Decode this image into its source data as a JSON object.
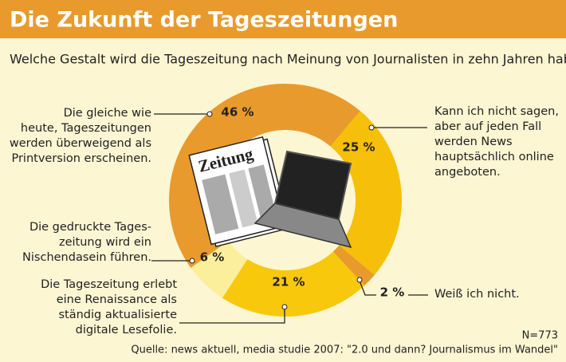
{
  "chart_data": {
    "type": "donut",
    "title": "Die Zukunft der Tageszeitungen",
    "subtitle": "Welche Gestalt wird die Tageszeitung nach Meinung von Journalisten in zehn Jahren haben?",
    "categories": [
      "Die gleiche wie\nheute, Tageszeitungen\nwerden überweigend als\nPrintversion erscheinen.",
      "Kann ich nicht sagen,\naber auf jeden Fall\nwerden News\nhauptsächlich online\nangeboten.",
      "Weiß ich nicht.",
      "Die Tageszeitung erlebt\neine Renaissance als\nständig aktualisierte\ndigitale Lesefolie.",
      "Die gedruckte Tages-\nzeitung wird ein\nNischendasein führen."
    ],
    "values": [
      46,
      25,
      2,
      21,
      6
    ],
    "value_labels": [
      "46 %",
      "25 %",
      "2 %",
      "21 %",
      "6 %"
    ],
    "colors": [
      "#e99a2c",
      "#f6bf0a",
      "#e99a2c",
      "#f8c80c",
      "#fbef9c"
    ],
    "illustration_label": "Zeitung",
    "sample_note": "N=773",
    "source": "Quelle: news aktuell, media studie 2007: \"2.0 und dann? Journalismus im Wandel\""
  }
}
